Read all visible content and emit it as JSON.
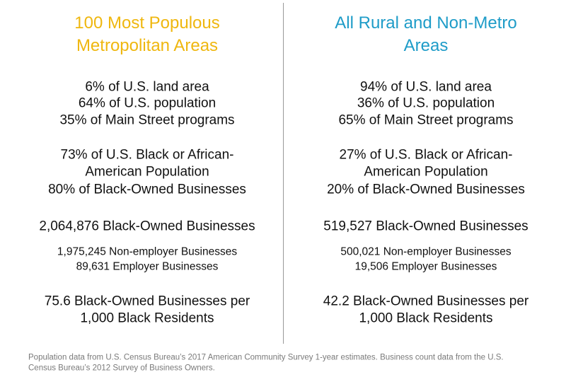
{
  "columns": [
    {
      "title": [
        "100 Most Populous",
        "Metropolitan Areas"
      ],
      "groups": [
        [
          "6% of U.S. land area",
          "64% of U.S. population",
          "35% of Main Street programs"
        ],
        [
          "73% of U.S. Black or African-",
          "American Population",
          "80% of Black-Owned Businesses"
        ],
        [
          "2,064,876 Black-Owned Businesses"
        ],
        [
          "1,975,245 Non-employer Businesses",
          "89,631 Employer Businesses"
        ],
        [
          "75.6 Black-Owned Businesses per",
          "1,000 Black Residents"
        ]
      ]
    },
    {
      "title": [
        "All Rural and Non-Metro",
        "Areas"
      ],
      "groups": [
        [
          "94% of U.S. land area",
          "36% of U.S. population",
          "65% of Main Street programs"
        ],
        [
          "27% of U.S. Black or African-",
          "American Population",
          "20% of Black-Owned Businesses"
        ],
        [
          "519,527 Black-Owned Businesses"
        ],
        [
          "500,021 Non-employer Businesses",
          "19,506 Employer Businesses"
        ],
        [
          "42.2 Black-Owned Businesses per",
          "1,000 Black Residents"
        ]
      ]
    }
  ],
  "footnote": [
    "Population data from U.S. Census Bureau’s 2017 American Community Survey 1-year estimates. Business count data from the U.S.",
    "Census Bureau’s 2012 Survey of Business Owners."
  ]
}
